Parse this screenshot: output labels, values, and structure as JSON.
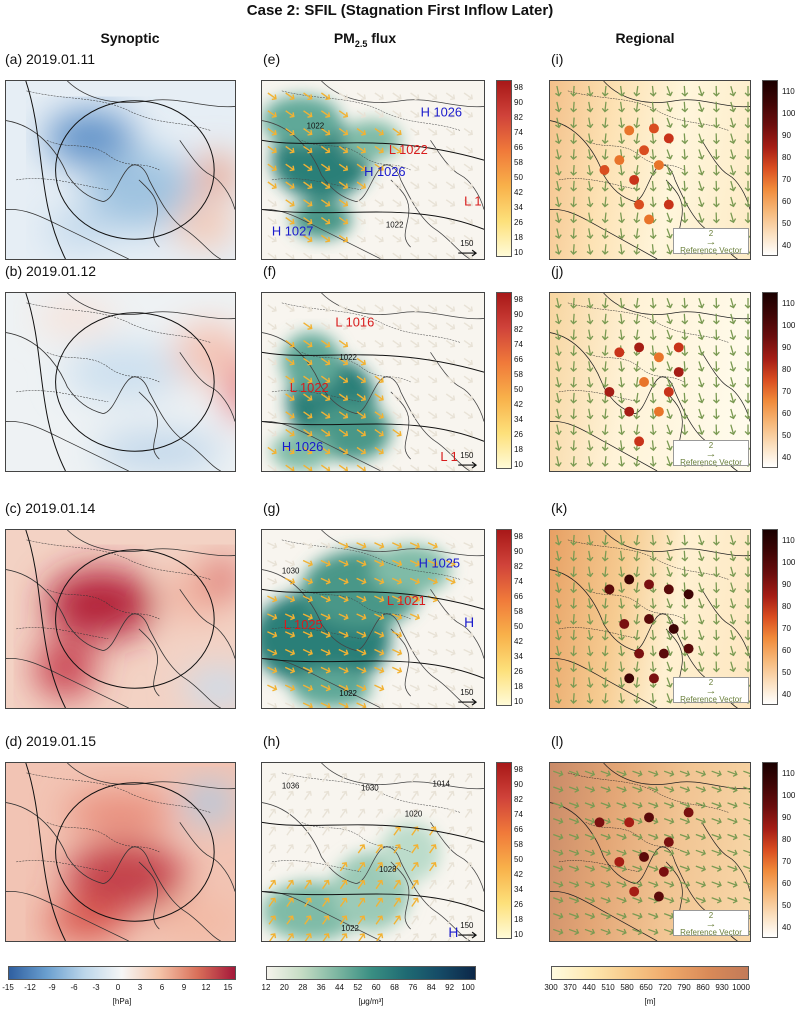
{
  "title": "Case 2: SFIL (Stagnation First Inflow Later)",
  "columns": {
    "synoptic": "Synoptic",
    "flux_main": "PM",
    "flux_sub": "2.5",
    "flux_tail": " flux",
    "regional": "Regional"
  },
  "rows": [
    {
      "date_label": "(a) 2019.01.11",
      "flux_label": "(e)",
      "regional_label": "(i)"
    },
    {
      "date_label": "(b) 2019.01.12",
      "flux_label": "(f)",
      "regional_label": "(j)"
    },
    {
      "date_label": "(c) 2019.01.14",
      "flux_label": "(g)",
      "regional_label": "(k)"
    },
    {
      "date_label": "(d) 2019.01.15",
      "flux_label": "(h)",
      "regional_label": "(l)"
    }
  ],
  "flux_isobars": [
    {
      "labels": [
        "H 1026",
        "L 1022",
        "H 1026",
        "L 1",
        "H 1027",
        "1022",
        "1022"
      ]
    },
    {
      "labels": [
        "L 1016",
        "1022",
        "L 1022",
        "H 1026",
        "L 1"
      ]
    },
    {
      "labels": [
        "H 1025",
        "L 1021",
        "H",
        "L 1025",
        "1030",
        "1022"
      ]
    },
    {
      "labels": [
        "1036",
        "1030",
        "1014",
        "1020",
        "1028",
        "1022",
        "H"
      ]
    }
  ],
  "flux_ref_value": "150",
  "regional_ref_value": "2",
  "regional_ref_label": "Reference Vector",
  "flux_colorbar_ticks": [
    "98",
    "90",
    "82",
    "74",
    "66",
    "58",
    "50",
    "42",
    "34",
    "26",
    "18",
    "10"
  ],
  "regional_colorbar_ticks": [
    "110",
    "100",
    "90",
    "80",
    "70",
    "60",
    "50",
    "40"
  ],
  "bottom_bars": {
    "synoptic": {
      "ticks": [
        "-15",
        "-12",
        "-9",
        "-6",
        "-3",
        "0",
        "3",
        "6",
        "9",
        "12",
        "15"
      ],
      "unit": "[hPa]"
    },
    "flux": {
      "ticks": [
        "12",
        "20",
        "28",
        "36",
        "44",
        "52",
        "60",
        "68",
        "76",
        "84",
        "92",
        "100"
      ],
      "unit": "[μg/m³]"
    },
    "regional": {
      "ticks": [
        "300",
        "370",
        "440",
        "510",
        "580",
        "650",
        "720",
        "790",
        "860",
        "930",
        "1000"
      ],
      "unit": "[m]"
    }
  },
  "colors": {
    "blue": "#2166ac",
    "red": "#b2182b",
    "teal": "#2a7f78",
    "orange": "#e8742a",
    "dark_red": "#5a0a0a",
    "high_label": "#1a1acc",
    "low_label": "#d81c1c"
  }
}
